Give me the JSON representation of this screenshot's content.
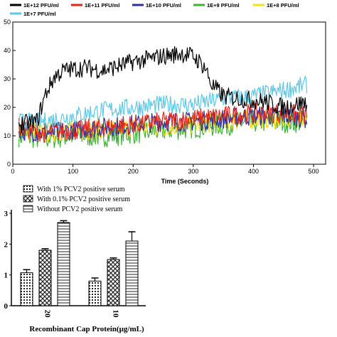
{
  "chart_data": [
    {
      "type": "line",
      "title": "",
      "xlabel": "Time (Seconds)",
      "ylabel": "",
      "xlim": [
        0,
        520
      ],
      "ylim": [
        0,
        50
      ],
      "x_ticks": [
        "0",
        "100",
        "200",
        "300",
        "400",
        "500"
      ],
      "y_ticks": [
        "0",
        "10",
        "20",
        "30",
        "40",
        "50"
      ],
      "grid": false,
      "legend_position": "top",
      "x_range_data": [
        10,
        490
      ],
      "series": [
        {
          "name": "1E+12 PFU/ml",
          "color": "#000000",
          "points": [
            [
              10,
              14
            ],
            [
              40,
              15
            ],
            [
              55,
              25
            ],
            [
              70,
              31
            ],
            [
              85,
              33
            ],
            [
              120,
              34
            ],
            [
              150,
              33
            ],
            [
              200,
              36
            ],
            [
              250,
              38
            ],
            [
              280,
              39
            ],
            [
              300,
              38
            ],
            [
              320,
              34
            ],
            [
              330,
              28
            ],
            [
              350,
              24
            ],
            [
              380,
              23
            ],
            [
              420,
              22
            ],
            [
              450,
              20
            ],
            [
              470,
              21
            ],
            [
              490,
              22
            ]
          ]
        },
        {
          "name": "1E+11 PFU/ml",
          "color": "#e0251b",
          "points": [
            [
              10,
              13
            ],
            [
              50,
              11
            ],
            [
              100,
              12
            ],
            [
              150,
              13
            ],
            [
              200,
              14
            ],
            [
              250,
              15
            ],
            [
              300,
              16
            ],
            [
              350,
              17
            ],
            [
              400,
              18
            ],
            [
              450,
              18
            ],
            [
              490,
              17
            ]
          ]
        },
        {
          "name": "1E+10 PFU/ml",
          "color": "#2b2f9e",
          "points": [
            [
              10,
              12
            ],
            [
              50,
              11
            ],
            [
              100,
              12
            ],
            [
              150,
              13
            ],
            [
              200,
              14
            ],
            [
              250,
              15
            ],
            [
              300,
              15
            ],
            [
              350,
              16
            ],
            [
              400,
              17
            ],
            [
              450,
              17
            ],
            [
              490,
              16
            ]
          ]
        },
        {
          "name": "1E+9 PFU/ml",
          "color": "#3fae3a",
          "points": [
            [
              10,
              10
            ],
            [
              50,
              9
            ],
            [
              100,
              10
            ],
            [
              150,
              10
            ],
            [
              200,
              11
            ],
            [
              250,
              12
            ],
            [
              300,
              13
            ],
            [
              350,
              14
            ],
            [
              400,
              15
            ],
            [
              450,
              15
            ],
            [
              490,
              15
            ]
          ]
        },
        {
          "name": "1E+8 PFU/ml",
          "color": "#f4e01c",
          "points": [
            [
              10,
              12
            ],
            [
              50,
              11
            ],
            [
              100,
              12
            ],
            [
              150,
              12
            ],
            [
              200,
              13
            ],
            [
              250,
              13
            ],
            [
              300,
              14
            ],
            [
              350,
              15
            ],
            [
              400,
              16
            ],
            [
              450,
              16
            ],
            [
              490,
              16
            ]
          ]
        },
        {
          "name": "1E+7 PFU/ml",
          "color": "#5cc8e6",
          "points": [
            [
              10,
              15
            ],
            [
              50,
              15
            ],
            [
              100,
              17
            ],
            [
              150,
              19
            ],
            [
              200,
              20
            ],
            [
              250,
              21
            ],
            [
              300,
              21
            ],
            [
              350,
              23
            ],
            [
              400,
              24
            ],
            [
              450,
              26
            ],
            [
              490,
              28
            ]
          ]
        }
      ]
    },
    {
      "type": "bar",
      "title": "",
      "xlabel": "Recombinant Cap Protein(μg/mL)",
      "ylabel": "",
      "categories": [
        "20",
        "10"
      ],
      "ylim": [
        0,
        3
      ],
      "y_ticks": [
        "0",
        "1",
        "2",
        "3"
      ],
      "legend_position": "top-left",
      "series": [
        {
          "name": "With 1% PCV2 positive serum",
          "pattern": "dots",
          "values": [
            1.07,
            0.8
          ],
          "errors": [
            0.1,
            0.1
          ]
        },
        {
          "name": "With 0.1% PCV2 positive serum",
          "pattern": "checker",
          "values": [
            1.8,
            1.5
          ],
          "errors": [
            0.05,
            0.05
          ]
        },
        {
          "name": "Without PCV2 positive serum",
          "pattern": "stripes",
          "values": [
            2.7,
            2.1
          ],
          "errors": [
            0.06,
            0.3
          ]
        }
      ]
    }
  ]
}
